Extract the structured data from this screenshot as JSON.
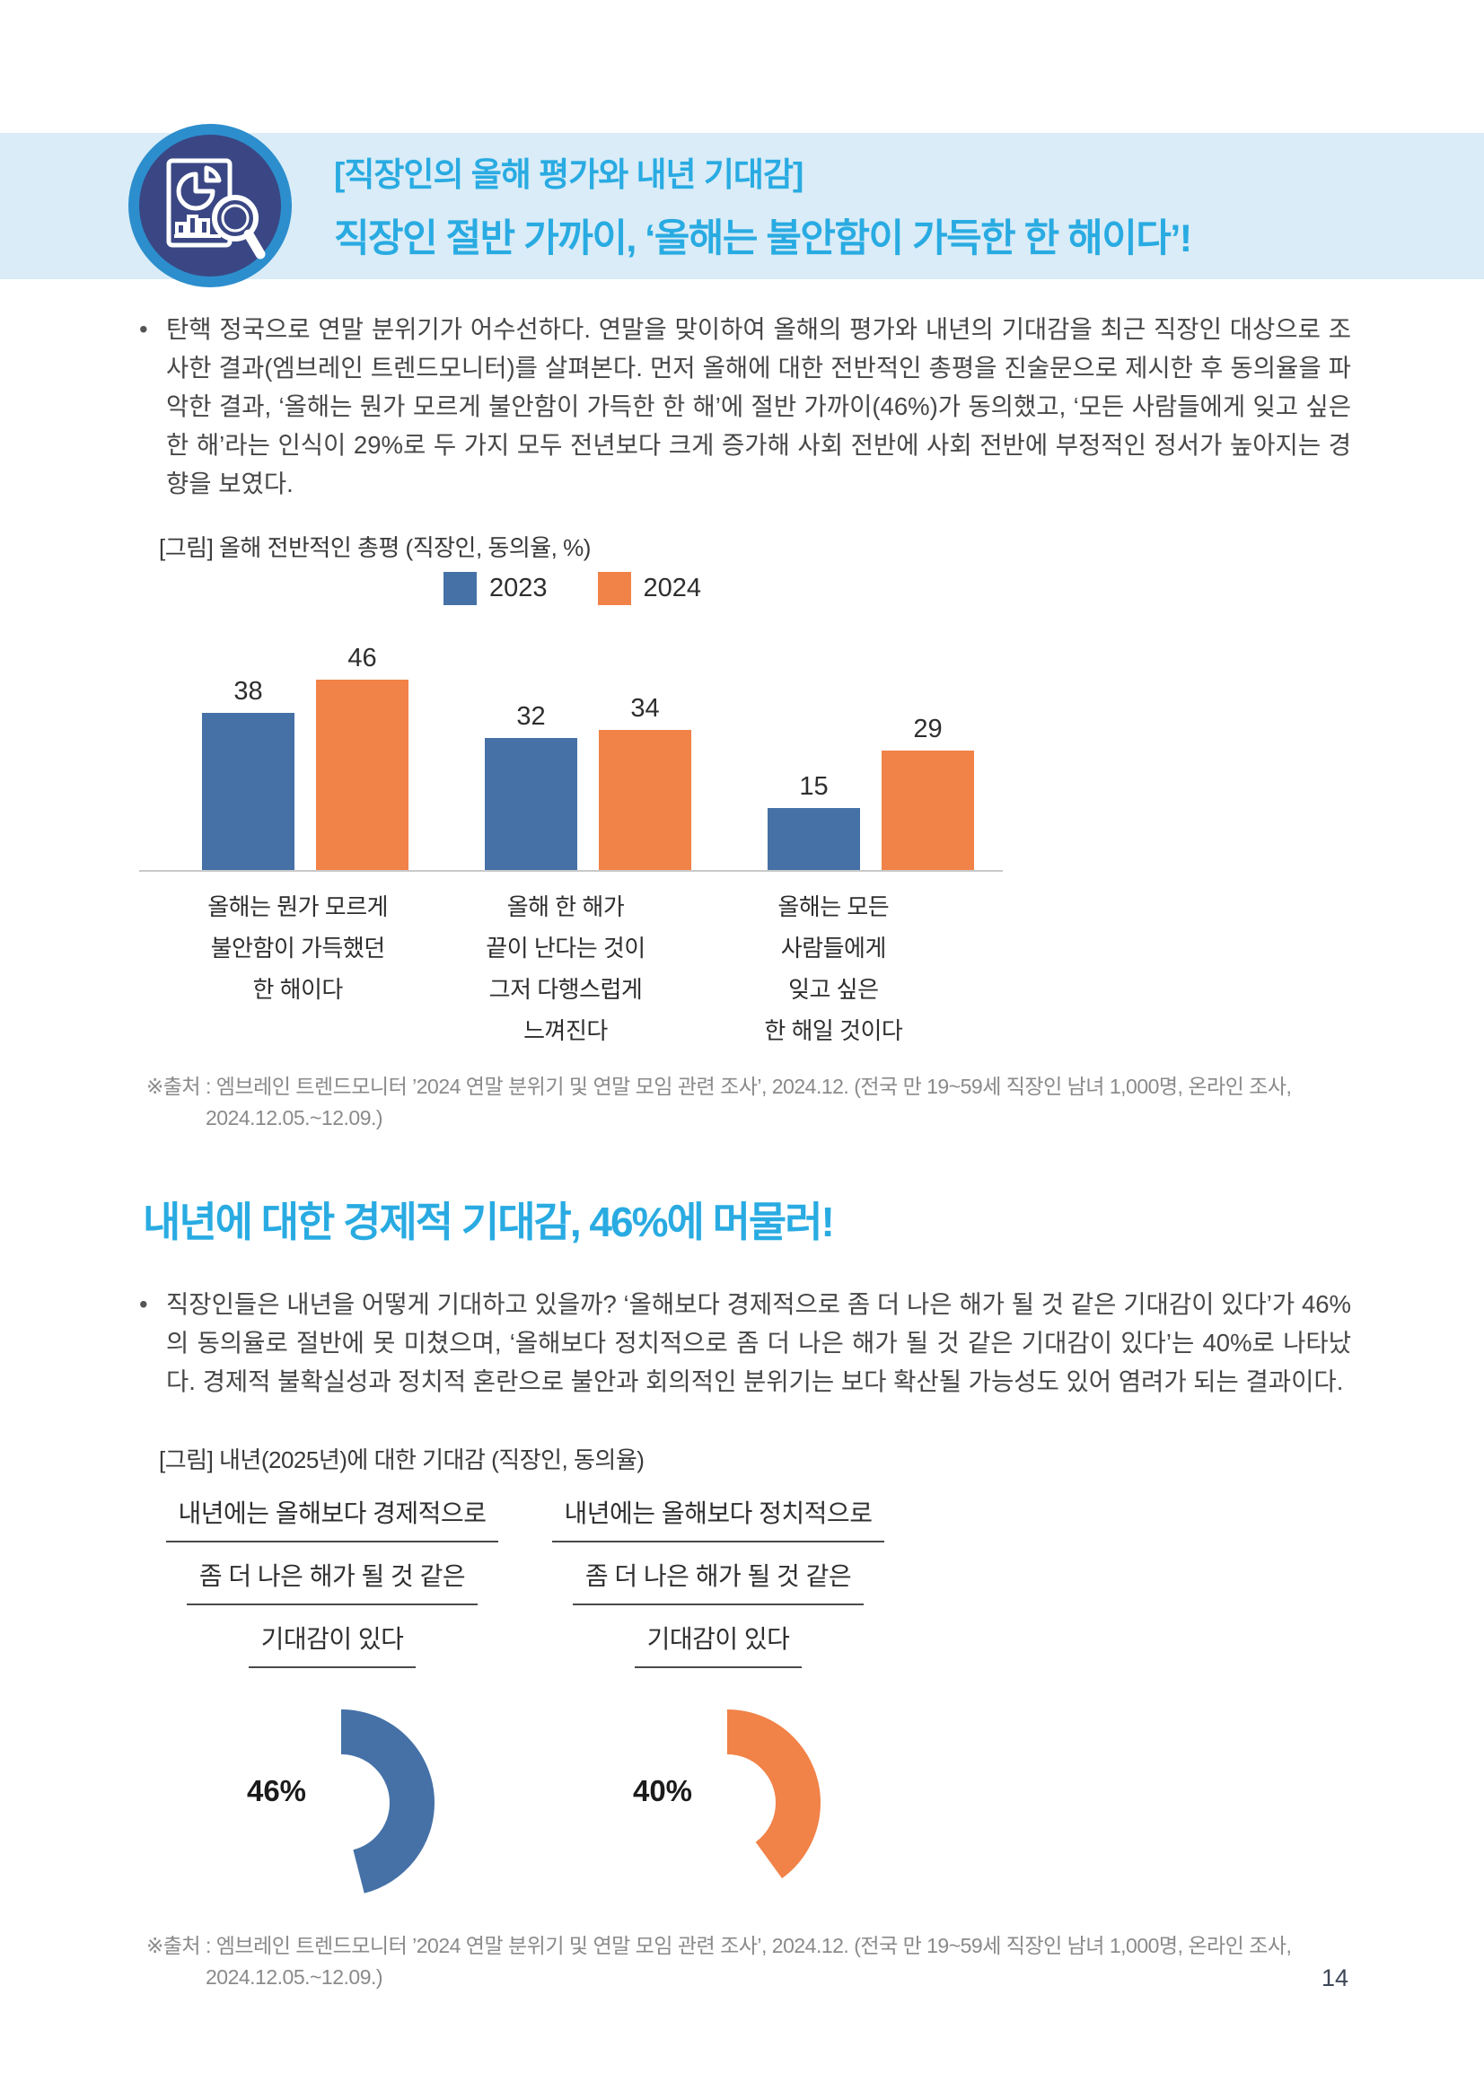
{
  "page": {
    "number": "14"
  },
  "header": {
    "kicker": "[직장인의 올해 평가와 내년 기대감]",
    "headline": "직장인 절반 가까이, ‘올해는 불안함이 가득한 한 해이다’!",
    "accent_color": "#29abe2",
    "band_color": "#d9ecf7",
    "badge_navy": "#3a4784",
    "badge_ring": "#2c8ecd",
    "icon": "report-chart-magnifier-icon"
  },
  "intro": {
    "bullet": "•",
    "text": "탄핵 정국으로 연말 분위기가 어수선하다. 연말을 맞이하여 올해의 평가와 내년의 기대감을 최근 직장인 대상으로 조사한 결과(엠브레인 트렌드모니터)를 살펴본다. 먼저 올해에 대한 전반적인 총평을 진술문으로 제시한 후 동의율을 파악한 결과, ‘올해는 뭔가 모르게 불안함이 가득한 한 해’에 절반 가까이(46%)가 동의했고, ‘모든 사람들에게 잊고 싶은 한 해’라는 인식이 29%로 두 가지 모두 전년보다 크게 증가해 사회 전반에 사회 전반에 부정적인 정서가 높아지는 경향을 보였다."
  },
  "chart1": {
    "caption": "[그림] 올해 전반적인 총평 (직장인, 동의율, %)"
  },
  "chart2": {
    "caption": "[그림] 내년(2025년)에 대한 기대감 (직장인, 동의율)"
  },
  "chart_data": [
    {
      "type": "bar",
      "title": "[그림] 올해 전반적인 총평 (직장인, 동의율, %)",
      "unit": "%",
      "legend_position": "top",
      "ylim": [
        0,
        50
      ],
      "categories": [
        [
          "올해는 뭔가 모르게",
          "불안함이 가득했던",
          "한 해이다"
        ],
        [
          "올해 한 해가",
          "끝이 난다는 것이",
          "그저 다행스럽게",
          "느껴진다"
        ],
        [
          "올해는 모든",
          "사람들에게",
          "잊고 싶은",
          "한 해일 것이다"
        ]
      ],
      "series": [
        {
          "name": "2023",
          "color": "#4571a7",
          "values": [
            38,
            32,
            15
          ]
        },
        {
          "name": "2024",
          "color": "#f18248",
          "values": [
            46,
            34,
            29
          ]
        }
      ]
    },
    {
      "type": "donut",
      "title": "[그림] 내년(2025년)에 대한 기대감 (직장인, 동의율)",
      "unit": "%",
      "items": [
        {
          "label_lines": [
            "내년에는 올해보다 경제적으로",
            "좀 더 나은 해가 될 것 같은",
            "기대감이 있다"
          ],
          "value": 46,
          "color": "#4571a7"
        },
        {
          "label_lines": [
            "내년에는 올해보다 정치적으로",
            "좀 더 나은 해가 될 것 같은",
            "기대감이 있다"
          ],
          "value": 40,
          "color": "#f18248"
        }
      ]
    }
  ],
  "section2": {
    "heading": "내년에 대한 경제적 기대감, 46%에 머물러!",
    "bullet": "•",
    "text": "직장인들은 내년을 어떻게 기대하고 있을까? ‘올해보다 경제적으로 좀 더 나은 해가 될 것 같은 기대감이 있다’가 46%의 동의율로 절반에 못 미쳤으며, ‘올해보다 정치적으로 좀 더 나은 해가 될 것 같은 기대감이 있다’는 40%로 나타났다. 경제적 불확실성과 정치적 혼란으로 불안과 회의적인 분위기는 보다 확산될 가능성도 있어 염려가 되는 결과이다."
  },
  "source_note": {
    "line1": "※출처 : 엠브레인 트렌드모니터 ’2024 연말 분위기 및 연말 모임 관련 조사’, 2024.12. (전국 만 19~59세 직장인 남녀 1,000명, 온라인 조사,",
    "line2": "2024.12.05.~12.09.)"
  }
}
